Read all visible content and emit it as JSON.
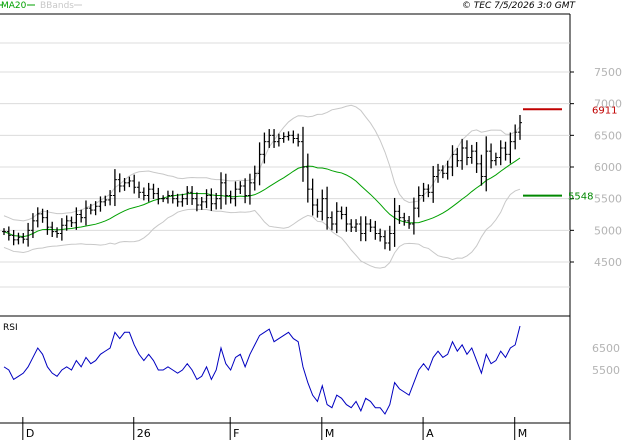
{
  "header": {
    "legend_ma": "MA20",
    "legend_bb": "BBands",
    "timestamp": "© TEC 7/5/2026 3:0 GMT"
  },
  "colors": {
    "ma": "#00a000",
    "bbands": "#c8c8c8",
    "candle": "#000000",
    "rsi": "#0000c0",
    "resistance": "#c00000",
    "support": "#008800",
    "grid": "#dcdcdc",
    "axis_text": "#b4b4b4"
  },
  "chart_data": [
    {
      "type": "line",
      "name": "price-panel",
      "subtype": "ohlc-bars",
      "ylim": [
        4000,
        7800
      ],
      "yticks": [
        "7500",
        "7000",
        "6500",
        "6000",
        "5500",
        "5000",
        "4500"
      ],
      "ytick_values": [
        7500,
        7000,
        6500,
        6000,
        5500,
        5000,
        4500
      ],
      "x_labels": [
        "D",
        "26",
        "F",
        "M",
        "A",
        "M"
      ],
      "x_label_index": [
        1,
        24,
        44,
        63,
        84,
        103
      ],
      "close": [
        4980,
        4920,
        4850,
        4890,
        4860,
        5000,
        5150,
        5260,
        5200,
        5050,
        4980,
        4950,
        5080,
        5150,
        5120,
        5250,
        5200,
        5350,
        5320,
        5380,
        5450,
        5480,
        5550,
        5800,
        5700,
        5750,
        5780,
        5680,
        5600,
        5550,
        5650,
        5580,
        5500,
        5500,
        5550,
        5500,
        5450,
        5500,
        5600,
        5500,
        5400,
        5450,
        5550,
        5420,
        5500,
        5750,
        5550,
        5500,
        5650,
        5700,
        5550,
        5750,
        5900,
        6200,
        6400,
        6500,
        6400,
        6450,
        6480,
        6500,
        6450,
        6400,
        6000,
        5650,
        5400,
        5300,
        5500,
        5200,
        5100,
        5300,
        5250,
        5100,
        5050,
        5100,
        4950,
        5100,
        5050,
        4950,
        4900,
        4800,
        4950,
        5300,
        5200,
        5150,
        5100,
        5350,
        5550,
        5650,
        5600,
        5850,
        5950,
        5900,
        6000,
        6200,
        6100,
        6300,
        6150,
        6250,
        6050,
        5850,
        6250,
        6100,
        6150,
        6300,
        6200,
        6400,
        6550,
        6700
      ]
    },
    {
      "type": "line",
      "name": "rsi-panel",
      "title": "RSI",
      "yticks": [
        "6500",
        "5500"
      ],
      "values": [
        50,
        48,
        42,
        44,
        46,
        50,
        56,
        62,
        58,
        50,
        46,
        44,
        48,
        50,
        48,
        54,
        50,
        56,
        52,
        54,
        58,
        60,
        62,
        72,
        68,
        72,
        72,
        64,
        58,
        54,
        58,
        54,
        48,
        48,
        50,
        48,
        46,
        48,
        52,
        48,
        42,
        44,
        50,
        42,
        48,
        62,
        52,
        48,
        56,
        58,
        50,
        58,
        64,
        70,
        72,
        74,
        66,
        68,
        70,
        72,
        68,
        66,
        50,
        40,
        32,
        28,
        38,
        26,
        24,
        32,
        30,
        26,
        24,
        28,
        22,
        30,
        28,
        24,
        24,
        20,
        26,
        40,
        36,
        34,
        32,
        40,
        48,
        52,
        48,
        56,
        60,
        56,
        58,
        66,
        60,
        64,
        58,
        62,
        54,
        46,
        58,
        52,
        54,
        60,
        56,
        62,
        64,
        76
      ]
    }
  ],
  "annotations": {
    "resistance": {
      "label": "6911",
      "value": 6911
    },
    "support": {
      "label": "5548",
      "value": 5548
    }
  }
}
